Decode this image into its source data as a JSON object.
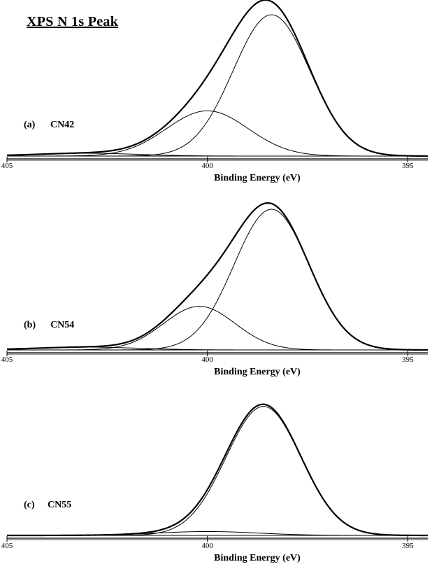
{
  "title": "XPS  N 1s Peak",
  "chart_data": [
    {
      "type": "line",
      "panel_label": "(a)",
      "sample": "CN42",
      "xlabel": "Binding Energy (eV)",
      "xlim": [
        405,
        394.5
      ],
      "x_reversed": true,
      "x_ticks": [
        405,
        400,
        395
      ],
      "baseline": 0,
      "components": [
        {
          "center": 398.4,
          "amplitude": 100,
          "fwhm": 2.25
        },
        {
          "center": 400.0,
          "amplitude": 32,
          "fwhm": 2.4
        },
        {
          "center": 403.0,
          "amplitude": 2,
          "fwhm": 3.0
        }
      ],
      "envelope_peak": {
        "x": 398.45,
        "y": 103
      }
    },
    {
      "type": "line",
      "panel_label": "(b)",
      "sample": "CN54",
      "xlabel": "Binding Energy (eV)",
      "xlim": [
        405,
        394.5
      ],
      "x_reversed": true,
      "x_ticks": [
        405,
        400,
        395
      ],
      "baseline": 0,
      "components": [
        {
          "center": 398.4,
          "amplitude": 100,
          "fwhm": 2.2
        },
        {
          "center": 400.2,
          "amplitude": 31,
          "fwhm": 2.1
        },
        {
          "center": 403.0,
          "amplitude": 2,
          "fwhm": 3.0
        }
      ],
      "envelope_peak": {
        "x": 398.45,
        "y": 103
      }
    },
    {
      "type": "line",
      "panel_label": "(c)",
      "sample": "CN55",
      "xlabel": "Binding Energy (eV)",
      "xlim": [
        405,
        394.5
      ],
      "x_reversed": true,
      "x_ticks": [
        405,
        400,
        395
      ],
      "baseline": 0,
      "components": [
        {
          "center": 398.6,
          "amplitude": 100,
          "fwhm": 2.2
        },
        {
          "center": 400.0,
          "amplitude": 3,
          "fwhm": 3.0
        }
      ],
      "envelope_peak": {
        "x": 398.6,
        "y": 102
      }
    }
  ]
}
